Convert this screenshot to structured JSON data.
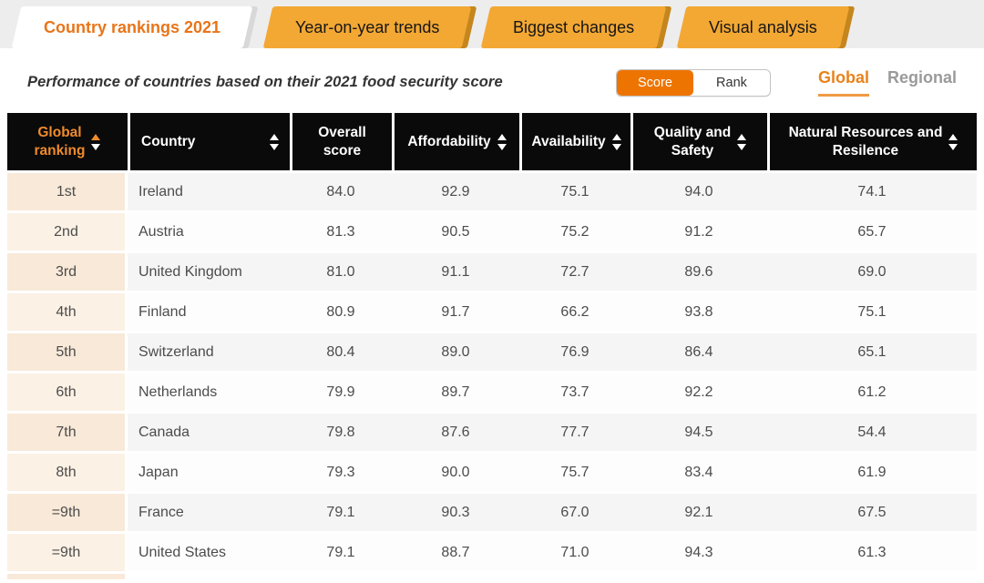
{
  "tabs": [
    {
      "label": "Country rankings 2021",
      "active": true
    },
    {
      "label": "Year-on-year trends",
      "active": false
    },
    {
      "label": "Biggest changes",
      "active": false
    },
    {
      "label": "Visual analysis",
      "active": false
    }
  ],
  "subtitle": "Performance of countries based on their 2021 food security score",
  "view_toggle": {
    "options": [
      "Score",
      "Rank"
    ],
    "selected": "Score"
  },
  "scope_toggle": {
    "options": [
      "Global",
      "Regional"
    ],
    "selected": "Global"
  },
  "table": {
    "columns": [
      {
        "id": "global-ranking",
        "label": "Global\nranking",
        "sortable": true,
        "sort": "asc",
        "highlight": true,
        "layout": "center"
      },
      {
        "id": "country",
        "label": "Country",
        "sortable": true,
        "sort": null,
        "highlight": false,
        "layout": "between"
      },
      {
        "id": "overall-score",
        "label": "Overall\nscore",
        "sortable": false,
        "sort": null,
        "highlight": false,
        "layout": "center"
      },
      {
        "id": "affordability",
        "label": "Affordability",
        "sortable": true,
        "sort": null,
        "highlight": false,
        "layout": "center"
      },
      {
        "id": "availability",
        "label": "Availability",
        "sortable": true,
        "sort": null,
        "highlight": false,
        "layout": "center"
      },
      {
        "id": "quality-safety",
        "label": "Quality and\nSafety",
        "sortable": true,
        "sort": null,
        "highlight": false,
        "layout": "center"
      },
      {
        "id": "natural-resources",
        "label": "Natural Resources and\nResilence",
        "sortable": true,
        "sort": null,
        "highlight": false,
        "layout": "center"
      }
    ],
    "rows": [
      [
        "1st",
        "Ireland",
        "84.0",
        "92.9",
        "75.1",
        "94.0",
        "74.1"
      ],
      [
        "2nd",
        "Austria",
        "81.3",
        "90.5",
        "75.2",
        "91.2",
        "65.7"
      ],
      [
        "3rd",
        "United Kingdom",
        "81.0",
        "91.1",
        "72.7",
        "89.6",
        "69.0"
      ],
      [
        "4th",
        "Finland",
        "80.9",
        "91.7",
        "66.2",
        "93.8",
        "75.1"
      ],
      [
        "5th",
        "Switzerland",
        "80.4",
        "89.0",
        "76.9",
        "86.4",
        "65.1"
      ],
      [
        "6th",
        "Netherlands",
        "79.9",
        "89.7",
        "73.7",
        "92.2",
        "61.2"
      ],
      [
        "7th",
        "Canada",
        "79.8",
        "87.6",
        "77.7",
        "94.5",
        "54.4"
      ],
      [
        "8th",
        "Japan",
        "79.3",
        "90.0",
        "75.7",
        "83.4",
        "61.9"
      ],
      [
        "=9th",
        "France",
        "79.1",
        "90.3",
        "67.0",
        "92.1",
        "67.5"
      ],
      [
        "=9th",
        "United States",
        "79.1",
        "88.7",
        "71.0",
        "94.3",
        "61.3"
      ]
    ]
  },
  "colors": {
    "tab_orange": "#f3a834",
    "tab_shadow": "#c4861d",
    "active_tab_text": "#e8751a",
    "score_button": "#ee7402",
    "header_black": "#0a0a0a",
    "header_sort_orange": "#ef8b2d",
    "rank_column_peach": "#f8e9d8"
  }
}
